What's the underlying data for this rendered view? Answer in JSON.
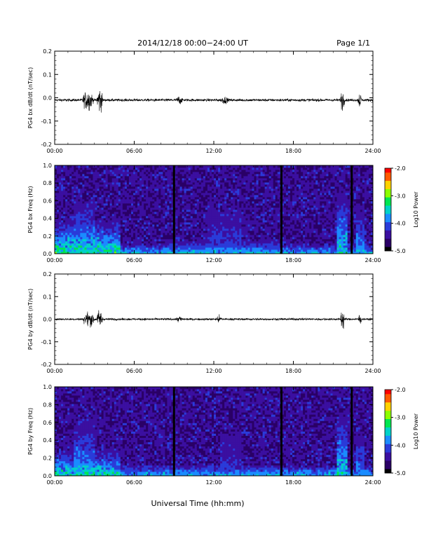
{
  "header": {
    "title": "2014/12/18   00:00−24:00 UT",
    "page": "Page 1/1"
  },
  "footer": {
    "xlabel": "Universal Time (hh:mm)"
  },
  "colors": {
    "trace": "#000000",
    "colormap": [
      "#000000",
      "#2a0066",
      "#3b0fa0",
      "#2a3bd9",
      "#1a8cff",
      "#00d2c8",
      "#00e650",
      "#8cff00",
      "#ffd200",
      "#ff5a00",
      "#ff0000"
    ],
    "data_gap": "#000000"
  },
  "chart_data": [
    {
      "type": "line",
      "name": "panel-bx-dbdt",
      "ylabel": "PG4 bx dB/dt (nT/sec)",
      "xlim": [
        0,
        24
      ],
      "ylim": [
        -0.2,
        0.2
      ],
      "yticks": [
        "0.2",
        "0.1",
        "0.0",
        "-0.1",
        "-0.2"
      ],
      "yticks_values": [
        0.2,
        0.1,
        0.0,
        -0.1,
        -0.2
      ],
      "xticks": [
        "00:00",
        "06:00",
        "12:00",
        "18:00",
        "24:00"
      ],
      "bursts": [
        {
          "center": 2.5,
          "width": 0.9,
          "amp": 0.07
        },
        {
          "center": 3.4,
          "width": 0.5,
          "amp": 0.09
        },
        {
          "center": 9.4,
          "width": 0.5,
          "amp": 0.025
        },
        {
          "center": 12.8,
          "width": 0.6,
          "amp": 0.02
        },
        {
          "center": 21.7,
          "width": 0.35,
          "amp": 0.07
        },
        {
          "center": 23.0,
          "width": 0.3,
          "amp": 0.05
        }
      ],
      "baseline": -0.01,
      "noise": 0.01
    },
    {
      "type": "heatmap",
      "name": "panel-bx-spectrogram",
      "ylabel": "PG4 bx Freq (Hz)",
      "xlim": [
        0,
        24
      ],
      "ylim": [
        0,
        1.0
      ],
      "yticks": [
        "1.0",
        "0.8",
        "0.6",
        "0.4",
        "0.2",
        "0.0"
      ],
      "yticks_values": [
        1.0,
        0.8,
        0.6,
        0.4,
        0.2,
        0.0
      ],
      "xticks": [
        "00:00",
        "06:00",
        "12:00",
        "18:00",
        "24:00"
      ],
      "colorbar": {
        "label": "Log10 Power",
        "range": [
          -5.0,
          -2.0
        ],
        "ticks": [
          "-2.0",
          "-3.0",
          "-4.0",
          "-5.0"
        ],
        "ticks_values": [
          -2.0,
          -3.0,
          -4.0,
          -5.0
        ]
      },
      "gaps_hours": [
        9.0,
        17.1,
        22.4
      ],
      "features": [
        {
          "t0": 0.0,
          "t1": 5.0,
          "fmax": 0.45,
          "level": -3.2
        },
        {
          "t0": 1.5,
          "t1": 3.0,
          "fmax": 0.75,
          "level": -3.5
        },
        {
          "t0": 8.5,
          "t1": 17.0,
          "fmax": 0.2,
          "level": -3.6
        },
        {
          "t0": 11.5,
          "t1": 14.0,
          "fmax": 0.75,
          "level": -4.0
        },
        {
          "t0": 21.3,
          "t1": 22.0,
          "fmax": 0.85,
          "level": -3.4
        },
        {
          "t0": 22.7,
          "t1": 23.3,
          "fmax": 0.6,
          "level": -3.6
        }
      ]
    },
    {
      "type": "line",
      "name": "panel-by-dbdt",
      "ylabel": "PG4 by dB/dt (nT/sec)",
      "xlim": [
        0,
        24
      ],
      "ylim": [
        -0.2,
        0.2
      ],
      "yticks": [
        "0.2",
        "0.1",
        "0.0",
        "-0.1",
        "-0.2"
      ],
      "yticks_values": [
        0.2,
        0.1,
        0.0,
        -0.1,
        -0.2
      ],
      "xticks": [
        "00:00",
        "06:00",
        "12:00",
        "18:00",
        "24:00"
      ],
      "bursts": [
        {
          "center": 2.6,
          "width": 1.0,
          "amp": 0.05
        },
        {
          "center": 3.4,
          "width": 0.5,
          "amp": 0.07
        },
        {
          "center": 9.4,
          "width": 0.5,
          "amp": 0.02
        },
        {
          "center": 12.4,
          "width": 0.6,
          "amp": 0.02
        },
        {
          "center": 21.7,
          "width": 0.35,
          "amp": 0.08
        },
        {
          "center": 23.0,
          "width": 0.3,
          "amp": 0.04
        }
      ],
      "baseline": 0.0,
      "noise": 0.008
    },
    {
      "type": "heatmap",
      "name": "panel-by-spectrogram",
      "ylabel": "PG4 by Freq (Hz)",
      "xlim": [
        0,
        24
      ],
      "ylim": [
        0,
        1.0
      ],
      "yticks": [
        "1.0",
        "0.8",
        "0.6",
        "0.4",
        "0.2",
        "0.0"
      ],
      "yticks_values": [
        1.0,
        0.8,
        0.6,
        0.4,
        0.2,
        0.0
      ],
      "xticks": [
        "00:00",
        "06:00",
        "12:00",
        "18:00",
        "24:00"
      ],
      "colorbar": {
        "label": "Log10 Power",
        "range": [
          -5.0,
          -2.0
        ],
        "ticks": [
          "-2.0",
          "-3.0",
          "-4.0",
          "-5.0"
        ],
        "ticks_values": [
          -2.0,
          -3.0,
          -4.0,
          -5.0
        ]
      },
      "gaps_hours": [
        9.0,
        17.1,
        22.4
      ],
      "features": [
        {
          "t0": 0.0,
          "t1": 5.0,
          "fmax": 0.35,
          "level": -3.3
        },
        {
          "t0": 1.5,
          "t1": 3.0,
          "fmax": 0.8,
          "level": -3.6
        },
        {
          "t0": 8.5,
          "t1": 17.0,
          "fmax": 0.15,
          "level": -3.8
        },
        {
          "t0": 12.5,
          "t1": 14.0,
          "fmax": 0.75,
          "level": -4.1
        },
        {
          "t0": 21.3,
          "t1": 22.0,
          "fmax": 0.85,
          "level": -3.4
        },
        {
          "t0": 22.7,
          "t1": 23.3,
          "fmax": 0.6,
          "level": -3.7
        }
      ]
    }
  ]
}
